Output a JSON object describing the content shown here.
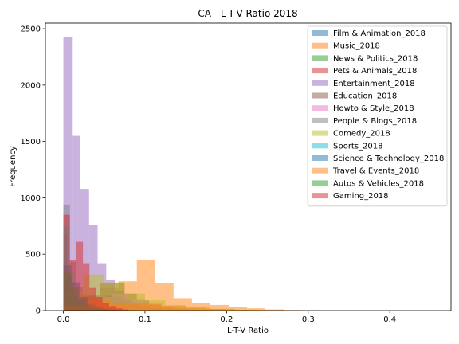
{
  "chart_data": {
    "type": "histogram",
    "title": "CA - L-T-V Ratio 2018",
    "xlabel": "L-T-V Ratio",
    "ylabel": "Frequency",
    "xlim": [
      -0.022,
      0.475
    ],
    "ylim": [
      0,
      2550
    ],
    "xticks": [
      0.0,
      0.1,
      0.2,
      0.3,
      0.4
    ],
    "xtick_labels": [
      "0.0",
      "0.1",
      "0.2",
      "0.3",
      "0.4"
    ],
    "yticks": [
      0,
      500,
      1000,
      1500,
      2000,
      2500
    ],
    "ytick_labels": [
      "0",
      "500",
      "1000",
      "1500",
      "2000",
      "2500"
    ],
    "legend_position": "upper-right",
    "grid": false,
    "series": [
      {
        "name": "Film & Animation_2018",
        "color": "#1f77b4",
        "bin_width": 0.007,
        "counts": [
          230,
          180,
          100,
          70,
          40,
          25,
          15,
          10
        ]
      },
      {
        "name": "Music_2018",
        "color": "#ff7f0e",
        "bin_width": 0.0225,
        "counts": [
          90,
          140,
          200,
          260,
          450,
          240,
          110,
          70,
          50,
          30,
          20,
          10,
          5,
          3
        ]
      },
      {
        "name": "News & Politics_2018",
        "color": "#2ca02c",
        "bin_width": 0.005,
        "counts": [
          680,
          300,
          120,
          60,
          30,
          15,
          8,
          4
        ]
      },
      {
        "name": "Pets & Animals_2018",
        "color": "#d62728",
        "bin_width": 0.012,
        "counts": [
          40,
          60,
          80,
          110,
          140,
          120,
          90,
          60,
          40,
          20,
          10,
          5
        ]
      },
      {
        "name": "Entertainment_2018",
        "color": "#9467bd",
        "bin_width": 0.0105,
        "counts": [
          2430,
          1550,
          1080,
          760,
          420,
          270,
          170,
          100,
          60,
          40,
          25,
          15,
          10,
          5
        ]
      },
      {
        "name": "Education_2018",
        "color": "#8c564b",
        "bin_width": 0.015,
        "counts": [
          60,
          100,
          130,
          240,
          240,
          150,
          90,
          50,
          30,
          15,
          8,
          4
        ]
      },
      {
        "name": "Howto & Style_2018",
        "color": "#e377c2",
        "bin_width": 0.02,
        "counts": [
          50,
          90,
          120,
          150,
          100,
          60,
          40,
          20,
          10,
          5
        ]
      },
      {
        "name": "People & Blogs_2018",
        "color": "#7f7f7f",
        "bin_width": 0.008,
        "counts": [
          940,
          430,
          210,
          130,
          80,
          50,
          30,
          15,
          8,
          4
        ]
      },
      {
        "name": "Comedy_2018",
        "color": "#bcbd22",
        "bin_width": 0.025,
        "counts": [
          170,
          320,
          250,
          150,
          90,
          50,
          30,
          15,
          8,
          4
        ]
      },
      {
        "name": "Sports_2018",
        "color": "#17becf",
        "bin_width": 0.006,
        "counts": [
          750,
          330,
          150,
          80,
          40,
          20,
          10,
          5
        ]
      },
      {
        "name": "Science & Technology_2018",
        "color": "#1f77b4",
        "bin_width": 0.01,
        "counts": [
          400,
          250,
          120,
          60,
          30,
          15,
          8
        ]
      },
      {
        "name": "Travel & Events_2018",
        "color": "#ff7f0e",
        "bin_width": 0.03,
        "counts": [
          40,
          90,
          70,
          60,
          40,
          25,
          15,
          8,
          4
        ]
      },
      {
        "name": "Autos & Vehicles_2018",
        "color": "#2ca02c",
        "bin_width": 0.009,
        "counts": [
          350,
          200,
          100,
          50,
          25,
          12,
          6
        ]
      },
      {
        "name": "Gaming_2018",
        "color": "#d62728",
        "bin_width": 0.008,
        "counts": [
          850,
          450,
          610,
          420,
          200,
          120,
          70,
          40,
          20,
          10
        ]
      }
    ]
  }
}
